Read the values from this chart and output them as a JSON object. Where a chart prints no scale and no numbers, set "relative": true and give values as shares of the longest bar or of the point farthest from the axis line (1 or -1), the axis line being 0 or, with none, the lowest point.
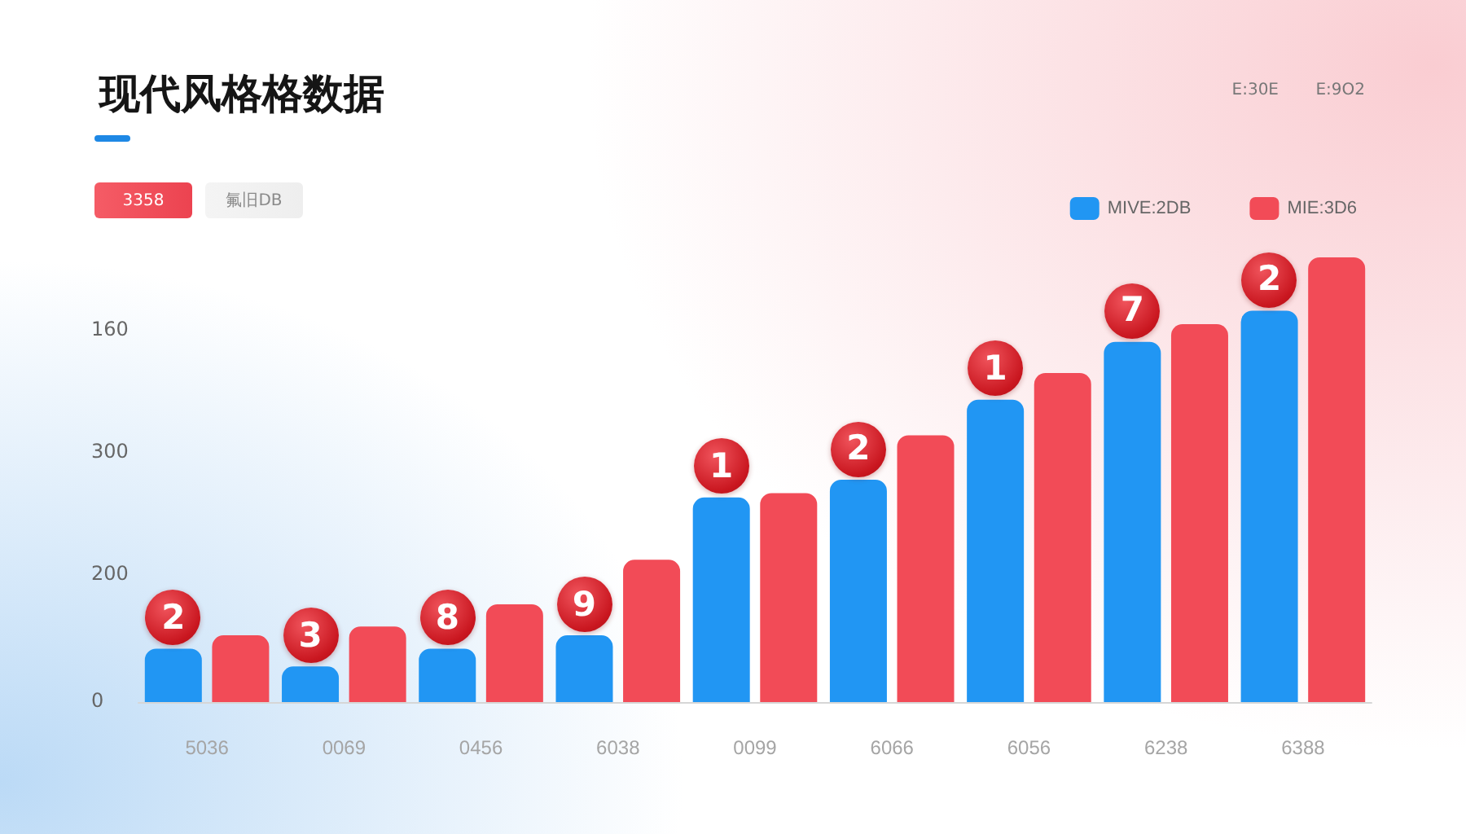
{
  "chart_data": {
    "type": "bar",
    "title": "现代风格格数据",
    "relative": true,
    "categories": [
      "5036",
      "0069",
      "0456",
      "6038",
      "0099",
      "6066",
      "6056",
      "6238",
      "6388"
    ],
    "series": [
      {
        "name": "MIVE:2DB",
        "color": "#2196f3",
        "values": [
          0.12,
          0.08,
          0.12,
          0.15,
          0.46,
          0.5,
          0.68,
          0.81,
          0.88
        ]
      },
      {
        "name": "MIE:3D6",
        "color": "#f24b57",
        "values": [
          0.15,
          0.17,
          0.22,
          0.32,
          0.47,
          0.6,
          0.74,
          0.85,
          1
        ]
      }
    ],
    "legend": "top right",
    "annotations": [
      "3358",
      "氟旧DB",
      "E:30E",
      "E:9O2",
      "160",
      "300",
      "200",
      "0",
      {
        "text": "2",
        "x": "5036",
        "y": 0.12
      },
      {
        "text": "3",
        "x": "0069",
        "y": 0.08
      },
      {
        "text": "8",
        "x": "0456",
        "y": 0.12
      },
      {
        "text": "9",
        "x": "6038",
        "y": 0.15
      },
      {
        "text": "1",
        "x": "0099",
        "y": 0.46
      },
      {
        "text": "2",
        "x": "6066",
        "y": 0.5
      },
      {
        "text": "1",
        "x": "6056",
        "y": 0.68
      },
      {
        "text": "7",
        "x": "6238",
        "y": 0.81
      },
      {
        "text": "2",
        "x": "6388",
        "y": 0.88
      }
    ]
  }
}
